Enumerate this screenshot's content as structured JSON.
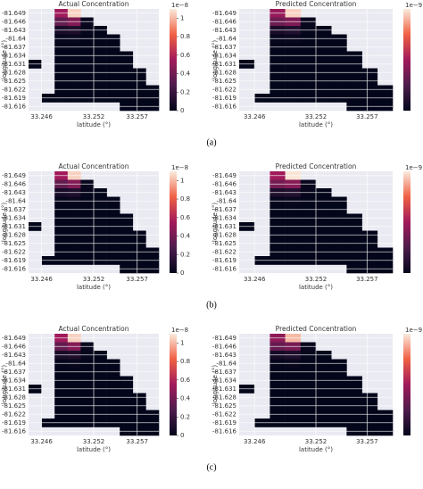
{
  "captions": [
    "(a)",
    "(b)",
    "(c)"
  ],
  "chart_data": [
    {
      "type": "heatmap",
      "title": "Actual Concentration",
      "xlabel": "latitude (°)",
      "ylabel": "longitude (°)",
      "xlim": [
        33.2445,
        33.2595
      ],
      "ylim": [
        -81.6505,
        -81.6145
      ],
      "xticks": [
        33.246,
        33.252,
        33.257
      ],
      "yticks": [
        -81.649,
        -81.646,
        -81.643,
        -81.64,
        -81.637,
        -81.634,
        -81.631,
        -81.628,
        -81.625,
        -81.622,
        -81.619,
        -81.616
      ],
      "grid": true,
      "zlim": [
        0,
        1.1
      ],
      "zticks": [
        0,
        0.2,
        0.4,
        0.6,
        0.8,
        1.0
      ],
      "zoffset": "1e−8",
      "z": [
        [
          null,
          null,
          0.55,
          1.05,
          null,
          null,
          null,
          null,
          null,
          null
        ],
        [
          null,
          null,
          0.35,
          0.45,
          0.02,
          null,
          null,
          null,
          null,
          null
        ],
        [
          null,
          null,
          0.08,
          0.1,
          0.01,
          0,
          null,
          null,
          null,
          null
        ],
        [
          null,
          null,
          0.01,
          0.02,
          0,
          0,
          0,
          null,
          null,
          null
        ],
        [
          null,
          null,
          0,
          0,
          0,
          0,
          0,
          null,
          null,
          null
        ],
        [
          null,
          null,
          0,
          0,
          0,
          0,
          0,
          0,
          null,
          null
        ],
        [
          0,
          null,
          0,
          0,
          0,
          0,
          0,
          0,
          null,
          null
        ],
        [
          null,
          null,
          0,
          0,
          0,
          0,
          0,
          0,
          0,
          null
        ],
        [
          null,
          null,
          0,
          0,
          0,
          0,
          0,
          0,
          0,
          null
        ],
        [
          null,
          null,
          0,
          0,
          0,
          0,
          0,
          0,
          0,
          0
        ],
        [
          null,
          0,
          0,
          0,
          0,
          0,
          0,
          0,
          0,
          0
        ],
        [
          null,
          null,
          null,
          null,
          null,
          null,
          null,
          0,
          0,
          0
        ]
      ]
    },
    {
      "type": "heatmap",
      "title": "Predicted Concentration",
      "xlabel": "latitude (°)",
      "ylabel": "longitude (°)",
      "xlim": [
        33.2445,
        33.2595
      ],
      "ylim": [
        -81.6505,
        -81.6145
      ],
      "xticks": [
        33.246,
        33.252,
        33.257
      ],
      "yticks": [
        -81.649,
        -81.646,
        -81.643,
        -81.64,
        -81.637,
        -81.634,
        -81.631,
        -81.628,
        -81.625,
        -81.622,
        -81.619,
        -81.616
      ],
      "grid": true,
      "zlim": [
        0,
        9
      ],
      "zoffset": "1e−9",
      "z": [
        [
          null,
          null,
          4.2,
          8.6,
          null,
          null,
          null,
          null,
          null,
          null
        ],
        [
          null,
          null,
          3.1,
          3.6,
          0.2,
          null,
          null,
          null,
          null,
          null
        ],
        [
          null,
          null,
          0.7,
          0.9,
          0.1,
          0,
          null,
          null,
          null,
          null
        ],
        [
          null,
          null,
          0.1,
          0.2,
          0,
          0,
          0,
          null,
          null,
          null
        ],
        [
          null,
          null,
          0,
          0,
          0,
          0,
          0,
          null,
          null,
          null
        ],
        [
          null,
          null,
          0,
          0,
          0,
          0,
          0,
          0,
          null,
          null
        ],
        [
          0,
          null,
          0,
          0,
          0,
          0,
          0,
          0,
          null,
          null
        ],
        [
          null,
          null,
          0,
          0,
          0,
          0,
          0,
          0,
          0,
          null
        ],
        [
          null,
          null,
          0,
          0,
          0,
          0,
          0,
          0,
          0,
          null
        ],
        [
          null,
          null,
          0,
          0,
          0,
          0,
          0,
          0,
          0,
          0
        ],
        [
          null,
          0,
          0,
          0,
          0,
          0,
          0,
          0,
          0,
          0
        ],
        [
          null,
          null,
          null,
          null,
          null,
          null,
          null,
          0,
          0,
          0
        ]
      ]
    },
    {
      "type": "heatmap",
      "title": "Actual Concentration",
      "xlabel": "latitude (°)",
      "ylabel": "longitude (°)",
      "xlim": [
        33.2445,
        33.2595
      ],
      "ylim": [
        -81.6505,
        -81.6145
      ],
      "xticks": [
        33.246,
        33.252,
        33.257
      ],
      "yticks": [
        -81.649,
        -81.646,
        -81.643,
        -81.64,
        -81.637,
        -81.634,
        -81.631,
        -81.628,
        -81.625,
        -81.622,
        -81.619,
        -81.616
      ],
      "grid": true,
      "zlim": [
        0,
        1.1
      ],
      "zticks": [
        0,
        0.2,
        0.4,
        0.6,
        0.8,
        1.0
      ],
      "zoffset": "1e−8",
      "z": [
        [
          null,
          null,
          0.55,
          1.05,
          null,
          null,
          null,
          null,
          null,
          null
        ],
        [
          null,
          null,
          0.35,
          0.45,
          0.02,
          null,
          null,
          null,
          null,
          null
        ],
        [
          null,
          null,
          0.08,
          0.1,
          0.01,
          0,
          null,
          null,
          null,
          null
        ],
        [
          null,
          null,
          0.01,
          0.02,
          0,
          0,
          0,
          null,
          null,
          null
        ],
        [
          null,
          null,
          0,
          0,
          0,
          0,
          0,
          null,
          null,
          null
        ],
        [
          null,
          null,
          0,
          0,
          0,
          0,
          0,
          0,
          null,
          null
        ],
        [
          0,
          null,
          0,
          0,
          0,
          0,
          0,
          0,
          null,
          null
        ],
        [
          null,
          null,
          0,
          0,
          0,
          0,
          0,
          0,
          0,
          null
        ],
        [
          null,
          null,
          0,
          0,
          0,
          0,
          0,
          0,
          0,
          null
        ],
        [
          null,
          null,
          0,
          0,
          0,
          0,
          0,
          0,
          0,
          0
        ],
        [
          null,
          0,
          0,
          0,
          0,
          0,
          0,
          0,
          0,
          0
        ],
        [
          null,
          null,
          null,
          null,
          null,
          null,
          null,
          0,
          0,
          0
        ]
      ]
    },
    {
      "type": "heatmap",
      "title": "Predicted Concentration",
      "xlabel": "latitude (°)",
      "ylabel": "longitude (°)",
      "xlim": [
        33.2445,
        33.2595
      ],
      "ylim": [
        -81.6505,
        -81.6145
      ],
      "xticks": [
        33.246,
        33.252,
        33.257
      ],
      "yticks": [
        -81.649,
        -81.646,
        -81.643,
        -81.64,
        -81.637,
        -81.634,
        -81.631,
        -81.628,
        -81.625,
        -81.622,
        -81.619,
        -81.616
      ],
      "grid": true,
      "zlim": [
        0,
        9
      ],
      "zoffset": "1e−9",
      "z": [
        [
          null,
          null,
          4.5,
          8.9,
          null,
          null,
          null,
          null,
          null,
          null
        ],
        [
          null,
          null,
          3.3,
          3.8,
          0.2,
          null,
          null,
          null,
          null,
          null
        ],
        [
          null,
          null,
          0.8,
          1.0,
          0.1,
          0,
          null,
          null,
          null,
          null
        ],
        [
          null,
          null,
          0.1,
          0.2,
          0,
          0,
          0,
          null,
          null,
          null
        ],
        [
          null,
          null,
          0,
          0,
          0,
          0,
          0,
          null,
          null,
          null
        ],
        [
          null,
          null,
          0,
          0,
          0,
          0,
          0,
          0,
          null,
          null
        ],
        [
          0,
          null,
          0,
          0,
          0,
          0,
          0,
          0,
          null,
          null
        ],
        [
          null,
          null,
          0,
          0,
          0,
          0,
          0,
          0,
          0,
          null
        ],
        [
          null,
          null,
          0,
          0,
          0,
          0,
          0,
          0,
          0,
          null
        ],
        [
          null,
          null,
          0,
          0,
          0,
          0,
          0,
          0,
          0,
          0
        ],
        [
          null,
          0,
          0,
          0,
          0,
          0,
          0,
          0,
          0,
          0
        ],
        [
          null,
          null,
          null,
          null,
          null,
          null,
          null,
          0,
          0,
          0
        ]
      ]
    },
    {
      "type": "heatmap",
      "title": "Actual Concentration",
      "xlabel": "latitude (°)",
      "ylabel": "longitude (°)",
      "xlim": [
        33.2445,
        33.2595
      ],
      "ylim": [
        -81.6505,
        -81.6145
      ],
      "xticks": [
        33.246,
        33.252,
        33.257
      ],
      "yticks": [
        -81.649,
        -81.646,
        -81.643,
        -81.64,
        -81.637,
        -81.634,
        -81.631,
        -81.628,
        -81.625,
        -81.622,
        -81.619,
        -81.616
      ],
      "grid": true,
      "zlim": [
        0,
        1.1
      ],
      "zticks": [
        0,
        0.2,
        0.4,
        0.6,
        0.8,
        1.0
      ],
      "zoffset": "1e−8",
      "z": [
        [
          null,
          null,
          0.55,
          1.05,
          null,
          null,
          null,
          null,
          null,
          null
        ],
        [
          null,
          null,
          0.35,
          0.45,
          0.02,
          null,
          null,
          null,
          null,
          null
        ],
        [
          null,
          null,
          0.08,
          0.1,
          0.01,
          0,
          null,
          null,
          null,
          null
        ],
        [
          null,
          null,
          0.01,
          0.02,
          0,
          0,
          0,
          null,
          null,
          null
        ],
        [
          null,
          null,
          0,
          0,
          0,
          0,
          0,
          null,
          null,
          null
        ],
        [
          null,
          null,
          0,
          0,
          0,
          0,
          0,
          0,
          null,
          null
        ],
        [
          0,
          null,
          0,
          0,
          0,
          0,
          0,
          0,
          null,
          null
        ],
        [
          null,
          null,
          0,
          0,
          0,
          0,
          0,
          0,
          0,
          null
        ],
        [
          null,
          null,
          0,
          0,
          0,
          0,
          0,
          0,
          0,
          null
        ],
        [
          null,
          null,
          0,
          0,
          0,
          0,
          0,
          0,
          0,
          0
        ],
        [
          null,
          0,
          0,
          0,
          0,
          0,
          0,
          0,
          0,
          0
        ],
        [
          null,
          null,
          null,
          null,
          null,
          null,
          null,
          0,
          0,
          0
        ]
      ]
    },
    {
      "type": "heatmap",
      "title": "Predicted Concentration",
      "xlabel": "latitude (°)",
      "ylabel": "longitude (°)",
      "xlim": [
        33.2445,
        33.2595
      ],
      "ylim": [
        -81.6505,
        -81.6145
      ],
      "xticks": [
        33.246,
        33.252,
        33.257
      ],
      "yticks": [
        -81.649,
        -81.646,
        -81.643,
        -81.64,
        -81.637,
        -81.634,
        -81.631,
        -81.628,
        -81.625,
        -81.622,
        -81.619,
        -81.616
      ],
      "grid": true,
      "zlim": [
        0,
        9
      ],
      "zoffset": "1e−9",
      "z": [
        [
          null,
          null,
          4.0,
          8.2,
          null,
          null,
          null,
          null,
          null,
          null
        ],
        [
          null,
          null,
          2.9,
          3.4,
          0.2,
          null,
          null,
          null,
          null,
          null
        ],
        [
          null,
          null,
          0.6,
          0.8,
          0.1,
          0,
          null,
          null,
          null,
          null
        ],
        [
          null,
          null,
          0.1,
          0.2,
          0,
          0,
          0,
          null,
          null,
          null
        ],
        [
          null,
          null,
          0,
          0,
          0,
          0,
          0,
          null,
          null,
          null
        ],
        [
          null,
          null,
          0,
          0,
          0,
          0,
          0,
          0,
          null,
          null
        ],
        [
          0,
          null,
          0,
          0,
          0,
          0,
          0,
          0,
          null,
          null
        ],
        [
          null,
          null,
          0,
          0,
          0,
          0,
          0,
          0,
          0,
          null
        ],
        [
          null,
          null,
          0,
          0,
          0,
          0,
          0,
          0,
          0,
          null
        ],
        [
          null,
          null,
          0,
          0,
          0,
          0,
          0,
          0,
          0,
          0
        ],
        [
          null,
          0,
          0,
          0,
          0,
          0,
          0,
          0,
          0,
          0
        ],
        [
          null,
          null,
          null,
          null,
          null,
          null,
          null,
          0,
          0,
          0
        ]
      ]
    }
  ]
}
